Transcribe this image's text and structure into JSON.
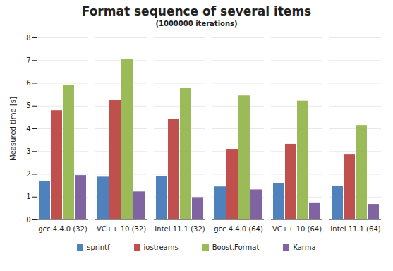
{
  "chart_data": {
    "type": "bar",
    "title": "Format sequence of several items",
    "subtitle": "(1000000 iterations)",
    "y_label": "Measured time [s]",
    "categories": [
      "gcc 4.4.0 (32)",
      "VC++ 10 (32)",
      "Intel 11.1 (32)",
      "gcc 4.4.0 (64)",
      "VC++ 10 (64)",
      "Intel 11.1 (64)"
    ],
    "series": [
      {
        "name": "sprintf",
        "color": "#4f81bd",
        "values": [
          1.7,
          1.88,
          1.92,
          1.45,
          1.6,
          1.48
        ]
      },
      {
        "name": "iostreams",
        "color": "#c0504d",
        "values": [
          4.8,
          5.25,
          4.42,
          3.1,
          3.32,
          2.88
        ]
      },
      {
        "name": "Boost.Format",
        "color": "#9bbb59",
        "values": [
          5.9,
          7.05,
          5.78,
          5.45,
          5.22,
          4.15
        ]
      },
      {
        "name": "Karma",
        "color": "#8064a2",
        "values": [
          1.95,
          1.23,
          0.98,
          1.32,
          0.75,
          0.68
        ]
      }
    ],
    "ylim": [
      0,
      8
    ],
    "yticks": [
      0,
      1,
      2,
      3,
      4,
      5,
      6,
      7,
      8
    ],
    "grid": true,
    "legend": "bottom"
  }
}
